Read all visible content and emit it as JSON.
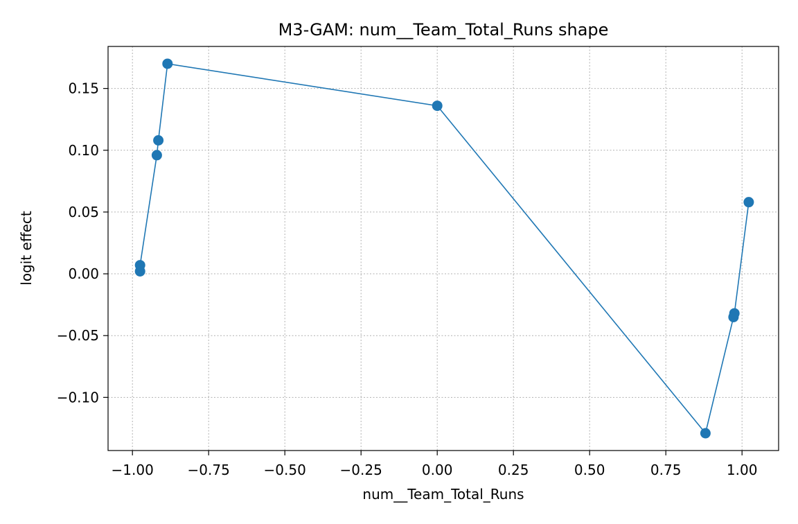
{
  "chart_data": {
    "type": "line",
    "title": "M3-GAM: num__Team_Total_Runs shape",
    "xlabel": "num__Team_Total_Runs",
    "ylabel": "logit effect",
    "xlim": [
      -1.08,
      1.12
    ],
    "ylim": [
      -0.143,
      0.184
    ],
    "grid": true,
    "line_color": "#1f77b4",
    "x_ticks": [
      {
        "value": -1.0,
        "label": "−1.00"
      },
      {
        "value": -0.75,
        "label": "−0.75"
      },
      {
        "value": -0.5,
        "label": "−0.50"
      },
      {
        "value": -0.25,
        "label": "−0.25"
      },
      {
        "value": 0.0,
        "label": "0.00"
      },
      {
        "value": 0.25,
        "label": "0.25"
      },
      {
        "value": 0.5,
        "label": "0.50"
      },
      {
        "value": 0.75,
        "label": "0.75"
      },
      {
        "value": 1.0,
        "label": "1.00"
      }
    ],
    "y_ticks": [
      {
        "value": -0.1,
        "label": "−0.10"
      },
      {
        "value": -0.05,
        "label": "−0.05"
      },
      {
        "value": 0.0,
        "label": "0.00"
      },
      {
        "value": 0.05,
        "label": "0.05"
      },
      {
        "value": 0.1,
        "label": "0.10"
      },
      {
        "value": 0.15,
        "label": "0.15"
      }
    ],
    "series": [
      {
        "x": [
          -0.975,
          -0.975,
          -0.92,
          -0.915,
          -0.885,
          0.0,
          0.88,
          0.972,
          0.975,
          1.022
        ],
        "y": [
          0.002,
          0.007,
          0.096,
          0.108,
          0.17,
          0.136,
          -0.129,
          -0.035,
          -0.032,
          0.058
        ]
      }
    ]
  }
}
